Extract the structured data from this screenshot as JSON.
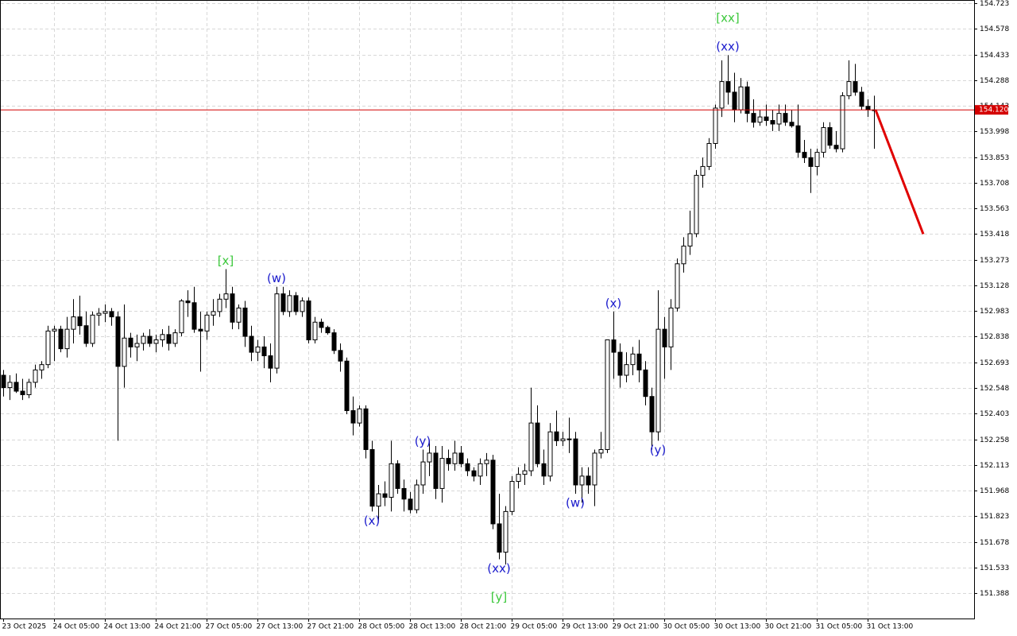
{
  "chart_data": {
    "type": "candlestick",
    "categories": [
      "23 Oct 2025",
      null,
      null,
      null,
      null,
      null,
      null,
      null,
      "24 Oct 05:00",
      null,
      null,
      null,
      null,
      null,
      null,
      null,
      "24 Oct 13:00",
      null,
      null,
      null,
      null,
      null,
      null,
      null,
      "24 Oct 21:00",
      null,
      null,
      null,
      null,
      null,
      null,
      null,
      "27 Oct 05:00",
      null,
      null,
      null,
      null,
      null,
      null,
      null,
      "27 Oct 13:00",
      null,
      null,
      null,
      null,
      null,
      null,
      null,
      "27 Oct 21:00",
      null,
      null,
      null,
      null,
      null,
      null,
      null,
      "28 Oct 05:00",
      null,
      null,
      null,
      null,
      null,
      null,
      null,
      "28 Oct 13:00",
      null,
      null,
      null,
      null,
      null,
      null,
      null,
      "28 Oct 21:00",
      null,
      null,
      null,
      null,
      null,
      null,
      null,
      "29 Oct 05:00",
      null,
      null,
      null,
      null,
      null,
      null,
      null,
      "29 Oct 13:00",
      null,
      null,
      null,
      null,
      null,
      null,
      null,
      "29 Oct 21:00",
      null,
      null,
      null,
      null,
      null,
      null,
      null,
      "30 Oct 05:00",
      null,
      null,
      null,
      null,
      null,
      null,
      null,
      "30 Oct 13:00",
      null,
      null,
      null,
      null,
      null,
      null,
      null,
      "30 Oct 21:00",
      null,
      null,
      null,
      null,
      null,
      null,
      null,
      "31 Oct 05:00",
      null,
      null,
      null,
      null,
      null,
      null,
      null,
      "31 Oct 13:00",
      null
    ],
    "open": [
      152.62,
      152.55,
      152.58,
      152.53,
      152.51,
      152.58,
      152.65,
      152.68,
      152.87,
      152.88,
      152.77,
      152.88,
      152.95,
      152.9,
      152.8,
      152.96,
      152.97,
      152.98,
      152.95,
      152.67,
      152.83,
      152.78,
      152.8,
      152.84,
      152.8,
      152.82,
      152.85,
      152.8,
      152.86,
      153.04,
      153.03,
      152.88,
      152.87,
      152.96,
      152.98,
      153.05,
      153.08,
      152.92,
      153.0,
      152.84,
      152.75,
      152.78,
      152.73,
      152.66,
      153.08,
      152.98,
      153.07,
      152.98,
      153.04,
      152.82,
      152.92,
      152.89,
      152.86,
      152.76,
      152.7,
      152.42,
      152.35,
      152.43,
      152.2,
      151.88,
      151.95,
      151.93,
      152.12,
      151.98,
      151.92,
      151.86,
      152.0,
      152.13,
      152.18,
      151.98,
      152.15,
      152.12,
      152.18,
      152.12,
      152.08,
      152.05,
      152.12,
      152.14,
      151.78,
      151.62,
      151.85,
      152.02,
      152.06,
      152.08,
      152.35,
      152.12,
      152.05,
      152.3,
      152.25,
      152.26,
      152.26,
      152.0,
      152.05,
      152.0,
      152.18,
      152.2,
      152.82,
      152.75,
      152.62,
      152.68,
      152.74,
      152.65,
      152.5,
      152.3,
      152.88,
      152.78,
      153.0,
      153.25,
      153.35,
      153.42,
      153.75,
      153.8,
      153.93,
      154.13,
      154.28,
      154.22,
      154.12,
      154.25,
      154.1,
      154.05,
      154.08,
      154.06,
      154.04,
      154.1,
      154.05,
      154.03,
      153.88,
      153.85,
      153.8,
      153.88,
      154.02,
      153.92,
      153.9,
      154.2,
      154.28,
      154.22,
      154.14,
      154.12
    ],
    "high": [
      152.65,
      152.62,
      152.63,
      152.6,
      152.6,
      152.68,
      152.7,
      152.9,
      152.9,
      152.9,
      152.95,
      153.05,
      153.07,
      152.98,
      152.98,
      153.0,
      153.02,
      153.0,
      152.98,
      153.02,
      152.86,
      152.85,
      152.86,
      152.88,
      152.85,
      152.88,
      152.9,
      152.88,
      153.05,
      153.1,
      153.12,
      152.98,
      152.98,
      153.05,
      153.08,
      153.22,
      153.12,
      153.02,
      153.04,
      152.9,
      152.82,
      152.84,
      152.8,
      153.12,
      153.12,
      153.1,
      153.09,
      153.06,
      153.06,
      152.95,
      152.94,
      152.9,
      152.88,
      152.8,
      152.72,
      152.5,
      152.45,
      152.45,
      152.25,
      152.0,
      152.02,
      152.25,
      152.14,
      152.03,
      151.96,
      152.03,
      152.2,
      152.25,
      152.22,
      152.22,
      152.2,
      152.25,
      152.22,
      152.15,
      152.1,
      152.15,
      152.18,
      152.17,
      151.95,
      151.88,
      152.05,
      152.1,
      152.12,
      152.55,
      152.45,
      152.2,
      152.35,
      152.42,
      152.3,
      152.38,
      152.3,
      152.1,
      152.1,
      152.2,
      152.3,
      152.8,
      152.98,
      152.8,
      152.75,
      152.78,
      152.82,
      152.7,
      152.55,
      153.1,
      152.95,
      153.05,
      153.28,
      153.4,
      153.55,
      153.78,
      153.85,
      153.96,
      154.15,
      154.4,
      154.43,
      154.33,
      154.3,
      154.28,
      154.18,
      154.12,
      154.15,
      154.12,
      154.15,
      154.15,
      154.12,
      154.15,
      153.95,
      153.9,
      153.9,
      154.05,
      154.05,
      154.0,
      154.22,
      154.4,
      154.38,
      154.25,
      154.18,
      154.2
    ],
    "low": [
      152.5,
      152.48,
      152.52,
      152.48,
      152.49,
      152.55,
      152.6,
      152.66,
      152.7,
      152.75,
      152.72,
      152.8,
      152.85,
      152.78,
      152.78,
      152.9,
      152.92,
      152.9,
      152.25,
      152.55,
      152.72,
      152.7,
      152.76,
      152.78,
      152.75,
      152.78,
      152.76,
      152.78,
      152.84,
      152.95,
      152.86,
      152.64,
      152.82,
      152.9,
      152.95,
      153.0,
      152.88,
      152.88,
      152.78,
      152.7,
      152.7,
      152.66,
      152.58,
      152.63,
      152.96,
      152.95,
      152.96,
      152.95,
      152.8,
      152.8,
      152.86,
      152.85,
      152.74,
      152.64,
      152.4,
      152.28,
      152.33,
      152.15,
      151.85,
      151.8,
      151.88,
      151.85,
      151.95,
      151.85,
      151.84,
      151.84,
      151.95,
      152.05,
      151.92,
      151.9,
      152.08,
      152.08,
      152.1,
      152.05,
      152.02,
      152.0,
      152.05,
      151.75,
      151.58,
      151.55,
      151.83,
      151.98,
      152.0,
      152.05,
      152.1,
      152.0,
      152.02,
      152.22,
      152.22,
      152.18,
      151.95,
      151.9,
      151.95,
      151.88,
      152.15,
      152.18,
      152.6,
      152.55,
      152.58,
      152.62,
      152.58,
      152.45,
      152.2,
      152.25,
      152.6,
      152.65,
      152.98,
      153.2,
      153.3,
      153.4,
      153.68,
      153.78,
      153.9,
      154.08,
      154.15,
      154.05,
      154.1,
      154.05,
      154.02,
      154.03,
      154.03,
      154.0,
      154.0,
      154.03,
      154.02,
      153.85,
      153.82,
      153.65,
      153.75,
      153.85,
      153.9,
      153.88,
      153.88,
      154.18,
      154.2,
      154.12,
      154.08,
      153.9
    ],
    "close": [
      152.55,
      152.58,
      152.53,
      152.51,
      152.58,
      152.65,
      152.68,
      152.87,
      152.88,
      152.77,
      152.88,
      152.95,
      152.9,
      152.8,
      152.96,
      152.97,
      152.98,
      152.95,
      152.67,
      152.83,
      152.78,
      152.8,
      152.84,
      152.8,
      152.82,
      152.85,
      152.8,
      152.86,
      153.04,
      153.03,
      152.88,
      152.87,
      152.96,
      152.98,
      153.05,
      153.08,
      152.92,
      153.0,
      152.84,
      152.75,
      152.78,
      152.73,
      152.66,
      153.08,
      152.98,
      153.07,
      152.98,
      153.04,
      152.82,
      152.92,
      152.89,
      152.86,
      152.76,
      152.7,
      152.42,
      152.35,
      152.43,
      152.2,
      151.88,
      151.95,
      151.93,
      152.12,
      151.98,
      151.92,
      151.86,
      152.0,
      152.13,
      152.18,
      151.98,
      152.15,
      152.12,
      152.18,
      152.12,
      152.08,
      152.05,
      152.12,
      152.14,
      151.78,
      151.62,
      151.85,
      152.02,
      152.06,
      152.08,
      152.35,
      152.12,
      152.05,
      152.3,
      152.25,
      152.26,
      152.26,
      152.0,
      152.05,
      152.0,
      152.18,
      152.2,
      152.82,
      152.75,
      152.62,
      152.68,
      152.74,
      152.65,
      152.5,
      152.3,
      152.88,
      152.78,
      153.0,
      153.25,
      153.35,
      153.42,
      153.75,
      153.8,
      153.93,
      154.13,
      154.28,
      154.22,
      154.12,
      154.25,
      154.1,
      154.05,
      154.08,
      154.06,
      154.04,
      154.1,
      154.05,
      154.03,
      153.88,
      153.85,
      153.8,
      153.88,
      154.02,
      153.92,
      153.9,
      154.2,
      154.28,
      154.22,
      154.14,
      154.12,
      154.12
    ],
    "up_color": "#ffffff",
    "down_color": "#000000",
    "outline_color": "#000000",
    "ylim": [
      151.245,
      154.723
    ],
    "yticks": [
      154.723,
      154.578,
      154.433,
      154.288,
      154.143,
      153.998,
      153.853,
      153.708,
      153.563,
      153.418,
      153.273,
      153.128,
      152.983,
      152.838,
      152.693,
      152.548,
      152.403,
      152.258,
      152.113,
      151.968,
      151.823,
      151.678,
      151.533,
      151.388
    ],
    "grid": true,
    "current_price": {
      "value": 154.12,
      "label": "154.120",
      "color": "#d40000"
    },
    "forecast": {
      "target": 153.418,
      "color": "#e00000"
    },
    "annotations": [
      {
        "text": "[x]",
        "color": "#3cc83c"
      },
      {
        "text": "(w)",
        "color": "#1a1acc"
      },
      {
        "text": "(x)",
        "color": "#1a1acc"
      },
      {
        "text": "(y)",
        "color": "#1a1acc"
      },
      {
        "text": "(xx)",
        "color": "#1a1acc"
      },
      {
        "text": "[y]",
        "color": "#3cc83c"
      },
      {
        "text": "(w)",
        "color": "#1a1acc"
      },
      {
        "text": "(x)",
        "color": "#1a1acc"
      },
      {
        "text": "(y)",
        "color": "#1a1acc"
      },
      {
        "text": "(xx)",
        "color": "#1a1acc"
      },
      {
        "text": "[xx]",
        "color": "#3cc83c"
      }
    ]
  }
}
